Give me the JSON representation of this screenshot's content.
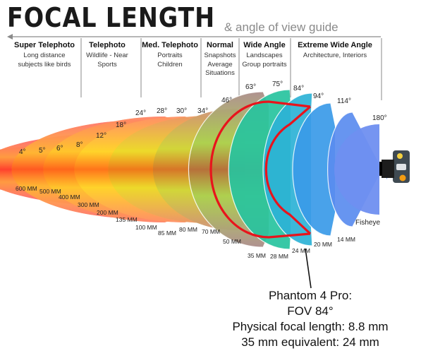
{
  "title": "FOCAL LENGTH",
  "subtitle": "& angle of view guide",
  "categories": [
    {
      "title": "Super Telephoto",
      "desc": [
        "Long distance",
        "subjects like birds"
      ]
    },
    {
      "title": "Telephoto",
      "desc": [
        "Wildlife - Near",
        "Sports"
      ]
    },
    {
      "title": "Med. Telephoto",
      "desc": [
        "Portraits",
        "Children"
      ]
    },
    {
      "title": "Normal",
      "desc": [
        "Snapshots",
        "Average",
        "Situations"
      ]
    },
    {
      "title": "Wide Angle",
      "desc": [
        "Landscapes",
        "Group portraits"
      ]
    },
    {
      "title": "Extreme Wide Angle",
      "desc": [
        "Architecture, Interiors"
      ]
    }
  ],
  "lenses": [
    {
      "angle": "4°",
      "focal": "600 MM"
    },
    {
      "angle": "5°",
      "focal": "500 MM"
    },
    {
      "angle": "6°",
      "focal": "400 MM"
    },
    {
      "angle": "8°",
      "focal": "300 MM"
    },
    {
      "angle": "12°",
      "focal": "200 MM"
    },
    {
      "angle": "18°",
      "focal": "135 MM"
    },
    {
      "angle": "24°",
      "focal": "100 MM"
    },
    {
      "angle": "28°",
      "focal": "85 MM"
    },
    {
      "angle": "30°",
      "focal": "80 MM"
    },
    {
      "angle": "34°",
      "focal": "70 MM"
    },
    {
      "angle": "46°",
      "focal": "50 MM"
    },
    {
      "angle": "63°",
      "focal": "35 MM"
    },
    {
      "angle": "75°",
      "focal": "28 MM"
    },
    {
      "angle": "84°",
      "focal": "24 MM"
    },
    {
      "angle": "94°",
      "focal": "20 MM"
    },
    {
      "angle": "114°",
      "focal": "14 MM"
    },
    {
      "angle": "180°",
      "focal": "Fisheye"
    }
  ],
  "highlight": {
    "angle": "84°",
    "color": "#e8141c"
  },
  "note": {
    "line1": "Phantom 4 Pro:",
    "line2": "FOV 84°",
    "line3": "Physical focal length: 8.8 mm",
    "line4": "35 mm equivalent: 24 mm"
  }
}
